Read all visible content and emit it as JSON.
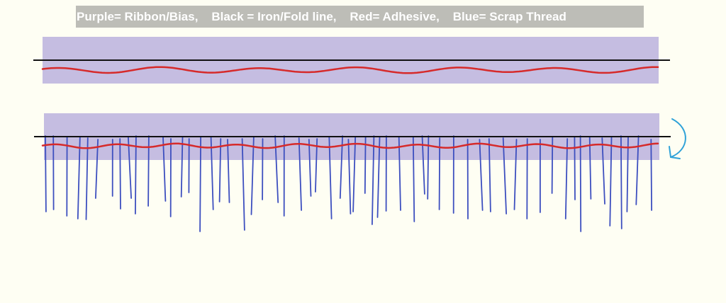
{
  "legend": {
    "text": "Purple= Ribbon/Bias,    Black = Iron/Fold line,    Red= Adhesive,    Blue= Scrap Thread"
  },
  "colors": {
    "background": "#FEFEF3",
    "legend_bg": "#BDBDB7",
    "legend_text": "#FFFFFF",
    "ribbon": "#C5BDE1",
    "fold_line": "#111111",
    "adhesive": "#D62A2A",
    "thread": "#3D4FBF",
    "arrow": "#2FA2D8"
  },
  "icons": {
    "fold_arrow": "curved-arrow-icon"
  }
}
